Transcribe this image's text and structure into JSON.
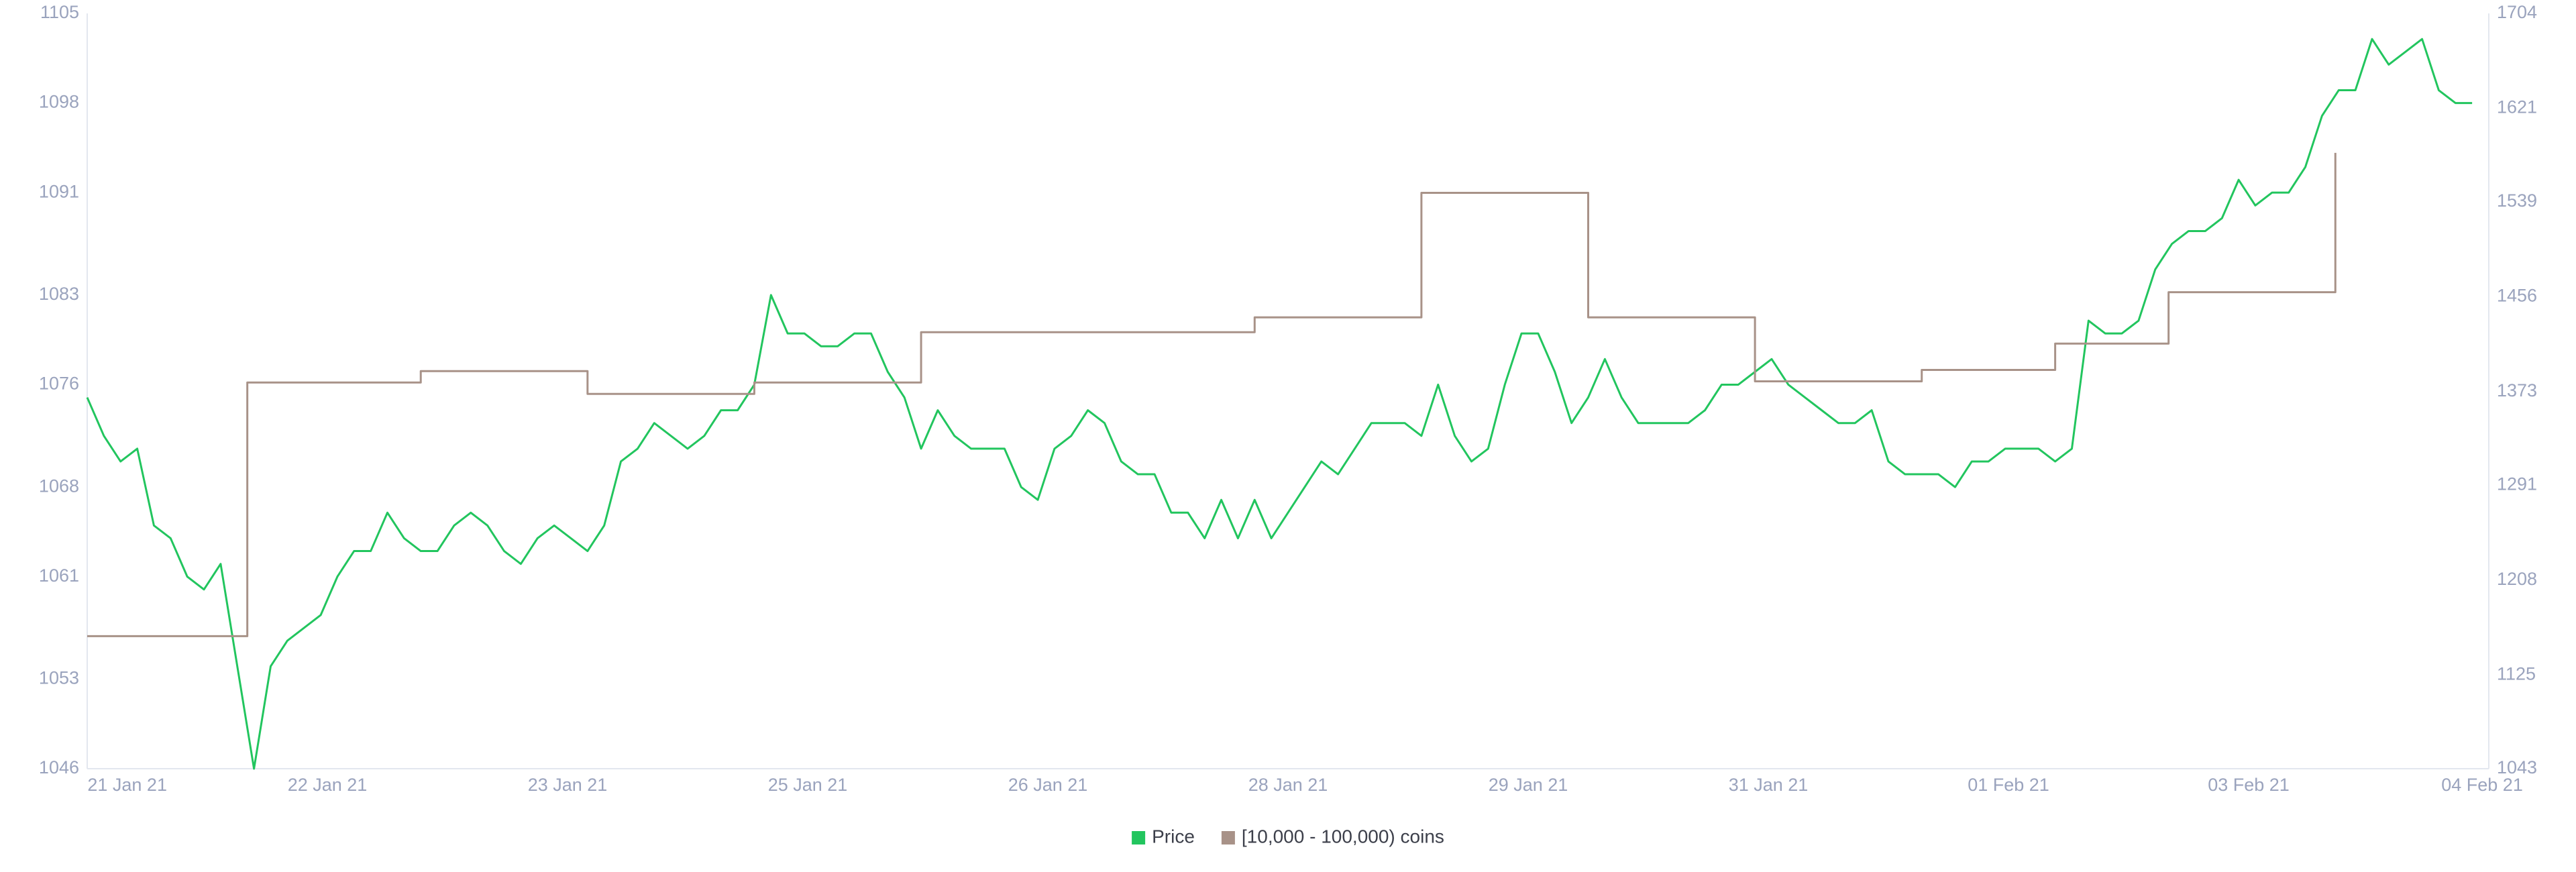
{
  "chart_data": {
    "type": "line",
    "xlim": [
      0,
      360
    ],
    "xticks": [
      {
        "value": 6,
        "label": "21 Jan 21"
      },
      {
        "value": 36,
        "label": "22 Jan 21"
      },
      {
        "value": 72,
        "label": "23 Jan 21"
      },
      {
        "value": 108,
        "label": "25 Jan 21"
      },
      {
        "value": 144,
        "label": "26 Jan 21"
      },
      {
        "value": 180,
        "label": "28 Jan 21"
      },
      {
        "value": 216,
        "label": "29 Jan 21"
      },
      {
        "value": 252,
        "label": "31 Jan 21"
      },
      {
        "value": 288,
        "label": "01 Feb 21"
      },
      {
        "value": 324,
        "label": "03 Feb 21"
      },
      {
        "value": 359,
        "label": "04 Feb 21"
      }
    ],
    "ylim": [
      1046,
      1105
    ],
    "yticks": [
      1046,
      1053,
      1061,
      1068,
      1076,
      1083,
      1091,
      1098,
      1105
    ],
    "y2lim": [
      1043,
      1704
    ],
    "y2ticks": [
      1043,
      1125,
      1208,
      1291,
      1373,
      1456,
      1539,
      1621,
      1704
    ],
    "grid": false,
    "legend": "bottom",
    "series": [
      {
        "name": "Price",
        "color": "#22c55e",
        "x": [
          0,
          2.5,
          5,
          7.5,
          10,
          12.5,
          15,
          17.5,
          20,
          22.5,
          25,
          27.5,
          30,
          32.5,
          35,
          37.5,
          40,
          42.5,
          45,
          47.5,
          50,
          52.5,
          55,
          57.5,
          60,
          62.5,
          65,
          67.5,
          70,
          72.5,
          75,
          77.5,
          80,
          82.5,
          85,
          87.5,
          90,
          92.5,
          95,
          97.5,
          100,
          102.5,
          105,
          107.5,
          110,
          112.5,
          115,
          117.5,
          120,
          122.5,
          125,
          127.5,
          130,
          132.5,
          135,
          137.5,
          140,
          142.5,
          145,
          147.5,
          150,
          152.5,
          155,
          157.5,
          160,
          162.5,
          165,
          167.5,
          170,
          172.5,
          175,
          177.5,
          180,
          182.5,
          185,
          187.5,
          190,
          192.5,
          195,
          197.5,
          200,
          202.5,
          205,
          207.5,
          210,
          212.5,
          215,
          217.5,
          220,
          222.5,
          225,
          227.5,
          230,
          232.5,
          235,
          237.5,
          240,
          242.5,
          245,
          247.5,
          250,
          252.5,
          255,
          257.5,
          260,
          262.5,
          265,
          267.5,
          270,
          272.5,
          275,
          277.5,
          280,
          282.5,
          285,
          287.5,
          290,
          292.5,
          295,
          297.5,
          300,
          302.5,
          305,
          307.5,
          310,
          312.5,
          315,
          317.5,
          320,
          322.5,
          325,
          327.5,
          330,
          332.5,
          335,
          337.5,
          340,
          342.5,
          345,
          347.5,
          350,
          352.5,
          355,
          357.5
        ],
        "values": [
          1075,
          1072,
          1070,
          1071,
          1065,
          1064,
          1061,
          1060,
          1062,
          1054,
          1046,
          1054,
          1056,
          1057,
          1058,
          1061,
          1063,
          1063,
          1066,
          1064,
          1063,
          1063,
          1065,
          1066,
          1065,
          1063,
          1062,
          1064,
          1065,
          1064,
          1063,
          1065,
          1070,
          1071,
          1073,
          1072,
          1071,
          1072,
          1074,
          1074,
          1076,
          1083,
          1080,
          1080,
          1079,
          1079,
          1080,
          1080,
          1077,
          1075,
          1071,
          1074,
          1072,
          1071,
          1071,
          1071,
          1068,
          1067,
          1071,
          1072,
          1074,
          1073,
          1070,
          1069,
          1069,
          1066,
          1066,
          1064,
          1067,
          1064,
          1067,
          1064,
          1066,
          1068,
          1070,
          1069,
          1071,
          1073,
          1073,
          1073,
          1072,
          1076,
          1072,
          1070,
          1071,
          1076,
          1080,
          1080,
          1077,
          1073,
          1075,
          1078,
          1075,
          1073,
          1073,
          1073,
          1073,
          1074,
          1076,
          1076,
          1077,
          1078,
          1076,
          1075,
          1074,
          1073,
          1073,
          1074,
          1070,
          1069,
          1069,
          1069,
          1068,
          1070,
          1070,
          1071,
          1071,
          1071,
          1070,
          1071,
          1081,
          1080,
          1080,
          1081,
          1085,
          1087,
          1088,
          1088,
          1089,
          1092,
          1090,
          1091,
          1091,
          1093,
          1097,
          1099,
          1099,
          1103,
          1101,
          1102,
          1103,
          1099,
          1098,
          1098
        ]
      },
      {
        "name": "[10,000 - 100,000) coins",
        "color": "#a89288",
        "axis": "y2",
        "step": "after",
        "x": [
          0,
          24,
          50,
          75,
          100,
          125,
          175,
          200,
          225,
          250,
          275,
          295,
          312,
          337
        ],
        "values": [
          1159,
          1381,
          1391,
          1371,
          1381,
          1425,
          1438,
          1547,
          1438,
          1382,
          1392,
          1415,
          1460,
          1582
        ]
      }
    ]
  }
}
